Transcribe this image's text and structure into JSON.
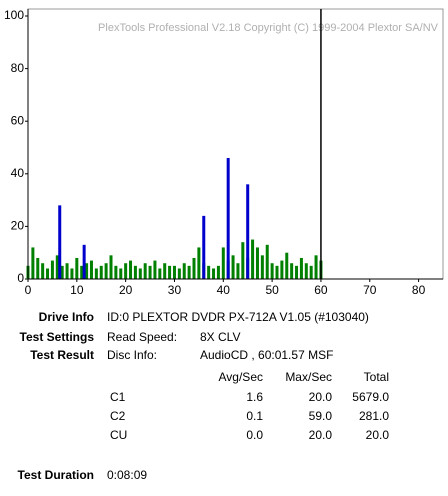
{
  "chart_data": {
    "type": "bar",
    "watermark": "PlexTools Professional V2.18 Copyright (C) 1999-2004 Plextor SA/NV",
    "xlim": [
      0,
      85
    ],
    "ylim": [
      0,
      100
    ],
    "xticks": [
      0,
      10,
      20,
      30,
      40,
      50,
      60,
      70,
      80
    ],
    "yticks": [
      0,
      20,
      40,
      60,
      80,
      100
    ],
    "marker_x": 60,
    "series": [
      {
        "color": "#008000",
        "x": [
          0,
          1,
          2,
          3,
          4,
          5,
          6,
          7,
          8,
          9,
          10,
          11,
          12,
          13,
          14,
          15,
          16,
          17,
          18,
          19,
          20,
          21,
          22,
          23,
          24,
          25,
          26,
          27,
          28,
          29,
          30,
          31,
          32,
          33,
          34,
          35,
          36,
          37,
          38,
          39,
          40,
          41,
          42,
          43,
          44,
          45,
          46,
          47,
          48,
          49,
          50,
          51,
          52,
          53,
          54,
          55,
          56,
          57,
          58,
          59,
          60
        ],
        "values": [
          5,
          12,
          8,
          6,
          4,
          7,
          9,
          5,
          6,
          4,
          8,
          5,
          6,
          7,
          4,
          5,
          6,
          9,
          5,
          4,
          6,
          7,
          5,
          4,
          6,
          5,
          7,
          4,
          6,
          5,
          5,
          4,
          6,
          5,
          8,
          12,
          6,
          5,
          4,
          5,
          12,
          7,
          9,
          6,
          14,
          8,
          15,
          12,
          9,
          13,
          6,
          5,
          7,
          10,
          6,
          5,
          8,
          6,
          5,
          9,
          7
        ]
      },
      {
        "color": "#0000cc",
        "x": [
          6.5,
          11.5,
          36,
          41,
          45
        ],
        "values": [
          28,
          13,
          24,
          46,
          36
        ]
      }
    ]
  },
  "info": {
    "drive_label": "Drive Info",
    "drive_value": "ID:0 PLEXTOR DVDR PX-712A V1.05 (#103040)",
    "settings_label": "Test Settings",
    "settings_key": "Read Speed:",
    "settings_value": "8X CLV",
    "result_label": "Test Result",
    "result_key": "Disc Info:",
    "result_value": "AudioCD , 60:01.57 MSF",
    "headers": [
      "Avg/Sec",
      "Max/Sec",
      "Total"
    ],
    "rows": [
      [
        "C1",
        "1.6",
        "20.0",
        "5679.0"
      ],
      [
        "C2",
        "0.1",
        "59.0",
        "281.0"
      ],
      [
        "CU",
        "0.0",
        "20.0",
        "20.0"
      ]
    ],
    "duration_label": "Test Duration",
    "duration_value": "0:08:09"
  }
}
